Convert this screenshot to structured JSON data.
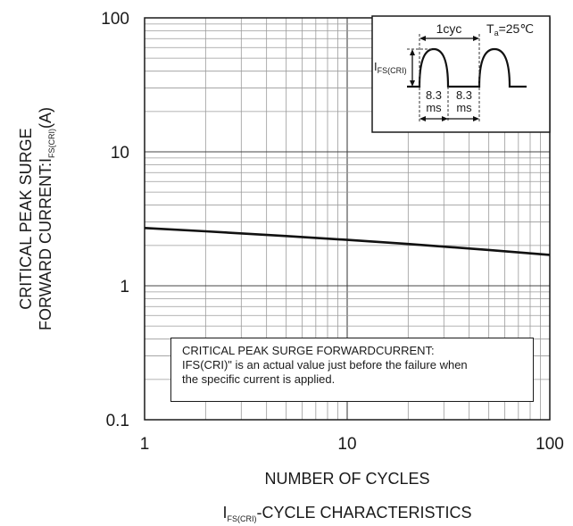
{
  "chart_data": {
    "type": "line",
    "x_scale": "log",
    "y_scale": "log",
    "xlim": [
      1,
      100
    ],
    "ylim": [
      0.1,
      100
    ],
    "grid": true,
    "x_ticks": [
      "1",
      "10",
      "100"
    ],
    "y_ticks": [
      "100",
      "10",
      "1",
      "0.1"
    ],
    "xlabel": "NUMBER OF CYCLES",
    "ylabel_line1": "CRITICAL PEAK SURGE",
    "ylabel_line2_prefix": "FORWARD CURRENT:I",
    "ylabel_line2_sub": "FS(CRI)",
    "ylabel_line2_suffix": "(A)",
    "caption_prefix": "I",
    "caption_sub": "FS(CRI)",
    "caption_suffix": "-CYCLE CHARACTERISTICS",
    "series": [
      {
        "x": [
          1,
          2,
          5,
          10,
          20,
          50,
          100
        ],
        "y": [
          2.7,
          2.55,
          2.35,
          2.2,
          2.05,
          1.85,
          1.7
        ]
      }
    ],
    "inset": {
      "period_label": "1cyc",
      "temp_prefix": "T",
      "temp_sub": "a",
      "temp_suffix": "=25℃",
      "current_prefix": "I",
      "current_sub": "FS(CRI)",
      "pulse_width_1": "8.3",
      "pulse_width_1_unit": "ms",
      "pulse_width_2": "8.3",
      "pulse_width_2_unit": "ms"
    },
    "annotation": {
      "line1": "CRITICAL PEAK SURGE FORWARDCURRENT:",
      "line2": "IFS(CRI)\" is an actual value just before the failure when",
      "line3": "the specific current is applied."
    }
  }
}
